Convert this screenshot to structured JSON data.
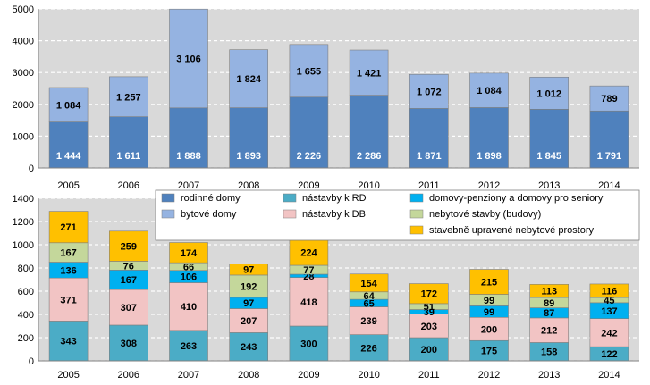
{
  "chart_data": [
    {
      "type": "bar",
      "stacked": true,
      "title": "",
      "xlabel": "",
      "ylabel": "",
      "ylim": [
        0,
        5000
      ],
      "yticks": [
        "0",
        "1000",
        "2000",
        "3000",
        "4000",
        "5000"
      ],
      "categories": [
        "2005",
        "2006",
        "2007",
        "2008",
        "2009",
        "2010",
        "2011",
        "2012",
        "2013",
        "2014"
      ],
      "series": [
        {
          "name": "rodinné domy",
          "color": "#4f81bd",
          "label_color": "#ffffff",
          "values": [
            1444,
            1611,
            1888,
            1893,
            2226,
            2286,
            1871,
            1898,
            1845,
            1791
          ],
          "labels": [
            "1 444",
            "1 611",
            "1 888",
            "1 893",
            "2 226",
            "2 286",
            "1 871",
            "1 898",
            "1 845",
            "1 791"
          ]
        },
        {
          "name": "bytové domy",
          "color": "#95b3e1",
          "label_color": "#000000",
          "values": [
            1084,
            1257,
            3106,
            1824,
            1655,
            1421,
            1072,
            1084,
            1012,
            789
          ],
          "labels": [
            "1 084",
            "1 257",
            "3 106",
            "1 824",
            "1 655",
            "1 421",
            "1 072",
            "1 084",
            "1 012",
            "789"
          ]
        }
      ],
      "grid": true
    },
    {
      "type": "bar",
      "stacked": true,
      "title": "",
      "xlabel": "",
      "ylabel": "",
      "ylim": [
        0,
        1400
      ],
      "yticks": [
        "0",
        "200",
        "400",
        "600",
        "800",
        "1000",
        "1200",
        "1400"
      ],
      "categories": [
        "2005",
        "2006",
        "2007",
        "2008",
        "2009",
        "2010",
        "2011",
        "2012",
        "2013",
        "2014"
      ],
      "series": [
        {
          "name": "nástavby k RD",
          "color": "#4bacc6",
          "values": [
            343,
            308,
            263,
            243,
            300,
            226,
            200,
            175,
            158,
            122
          ],
          "labels": [
            "343",
            "308",
            "263",
            "243",
            "300",
            "226",
            "200",
            "175",
            "158",
            "122"
          ]
        },
        {
          "name": "nástavby k DB",
          "color": "#f2c4c4",
          "values": [
            371,
            307,
            410,
            207,
            418,
            239,
            203,
            200,
            212,
            242
          ],
          "labels": [
            "371",
            "307",
            "410",
            "207",
            "418",
            "239",
            "203",
            "200",
            "212",
            "242"
          ]
        },
        {
          "name": "domovy-penziony a domovy pro seniory",
          "color": "#00b0f0",
          "values": [
            136,
            167,
            106,
            97,
            28,
            65,
            39,
            99,
            87,
            137
          ],
          "labels": [
            "136",
            "167",
            "106",
            "97",
            "28",
            "65",
            "39",
            "99",
            "87",
            "137"
          ]
        },
        {
          "name": "nebytové stavby (budovy)",
          "color": "#c4d79b",
          "values": [
            167,
            76,
            66,
            192,
            77,
            64,
            51,
            99,
            89,
            45
          ],
          "labels": [
            "167",
            "76",
            "66",
            "192",
            "77",
            "64",
            "51",
            "99",
            "89",
            "45"
          ]
        },
        {
          "name": "stavebně upravené nebytové prostory",
          "color": "#ffc000",
          "values": [
            271,
            259,
            174,
            97,
            224,
            154,
            172,
            215,
            113,
            116
          ],
          "labels": [
            "271",
            "259",
            "174",
            "97",
            "224",
            "154",
            "172",
            "215",
            "113",
            "116"
          ]
        }
      ],
      "grid": true
    }
  ],
  "legend": [
    {
      "label": "rodinné domy",
      "color": "#4f81bd"
    },
    {
      "label": "bytové domy",
      "color": "#95b3e1"
    },
    {
      "label": "nástavby k RD",
      "color": "#4bacc6"
    },
    {
      "label": "nástavby k DB",
      "color": "#f2c4c4"
    },
    {
      "label": "domovy-penziony a domovy pro seniory",
      "color": "#00b0f0"
    },
    {
      "label": "nebytové stavby (budovy)",
      "color": "#c4d79b"
    },
    {
      "label": "stavebně upravené nebytové prostory",
      "color": "#ffc000"
    }
  ]
}
